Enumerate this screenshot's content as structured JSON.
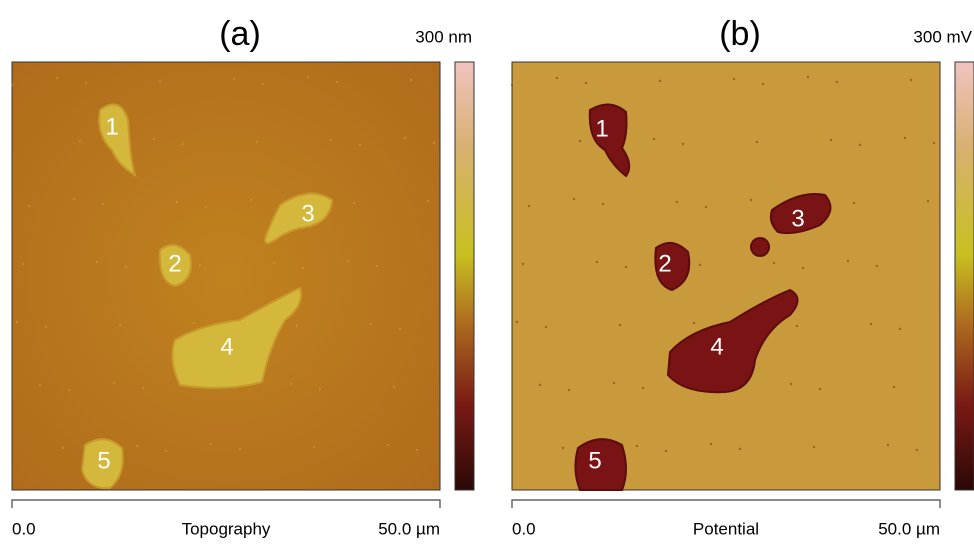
{
  "panels": [
    {
      "label": "(a)",
      "scale_max": "300 nm",
      "axis_start": "0.0",
      "axis_label": "Topography",
      "axis_end": "50.0 µm",
      "markers": [
        "1",
        "2",
        "3",
        "4",
        "5"
      ]
    },
    {
      "label": "(b)",
      "scale_max": "300 mV",
      "axis_start": "0.0",
      "axis_label": "Potential",
      "axis_end": "50.0 µm",
      "markers": [
        "1",
        "2",
        "3",
        "4",
        "5"
      ]
    }
  ]
}
